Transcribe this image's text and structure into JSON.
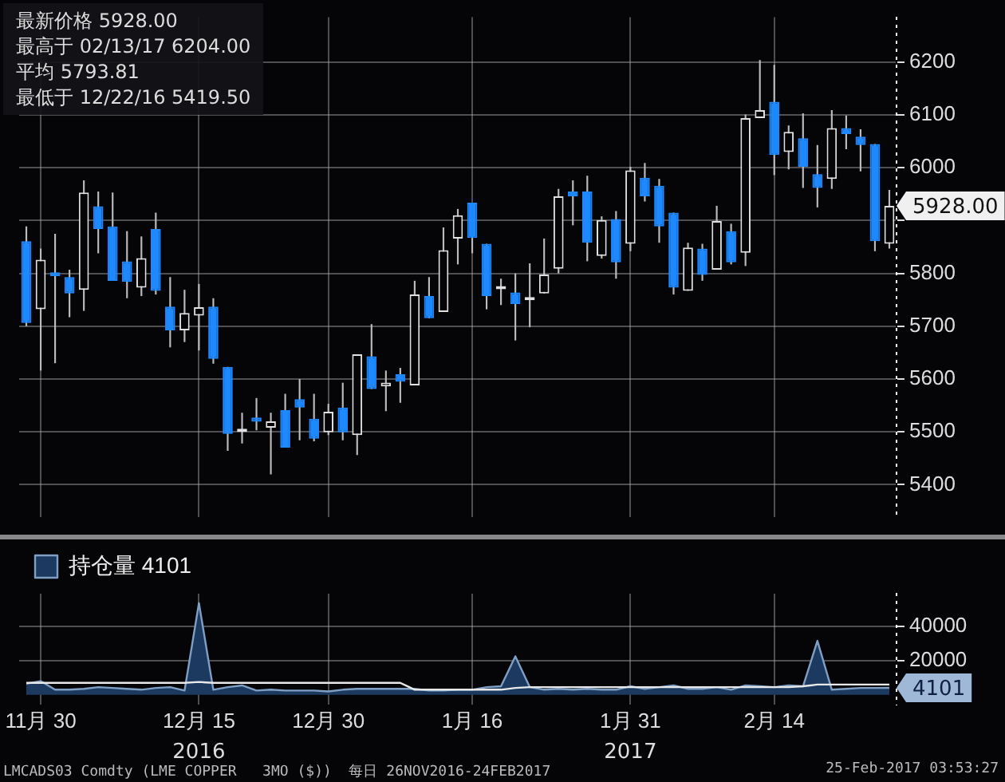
{
  "chart_data": [
    {
      "type": "candlestick",
      "categories": [
        null,
        null,
        null,
        null,
        null,
        null,
        null,
        null,
        null,
        null,
        null,
        null,
        null,
        null,
        null,
        null,
        null,
        null,
        null,
        null,
        null,
        null,
        null,
        null,
        null,
        null,
        null,
        null,
        null,
        null,
        null,
        null,
        null,
        null,
        null,
        null,
        null,
        null,
        null,
        null,
        null,
        null,
        null,
        null,
        null,
        null,
        null,
        null,
        null,
        null,
        null,
        null,
        null,
        null,
        null,
        null,
        null,
        null,
        null,
        null,
        null
      ],
      "ohlc": [
        [
          5861,
          5889,
          5700,
          5706
        ],
        [
          5732,
          5847,
          5616,
          5826
        ],
        [
          5802,
          5875,
          5630,
          5795
        ],
        [
          5793,
          5807,
          5717,
          5762
        ],
        [
          5769,
          5976,
          5729,
          5953
        ],
        [
          5927,
          5955,
          5838,
          5884
        ],
        [
          5889,
          5953,
          5786,
          5786
        ],
        [
          5823,
          5880,
          5753,
          5784
        ],
        [
          5773,
          5870,
          5757,
          5829
        ],
        [
          5884,
          5915,
          5760,
          5767
        ],
        [
          5737,
          5793,
          5660,
          5692
        ],
        [
          5692,
          5769,
          5670,
          5725
        ],
        [
          5720,
          5780,
          5654,
          5736
        ],
        [
          5737,
          5753,
          5629,
          5638
        ],
        [
          5623,
          5623,
          5464,
          5496
        ],
        [
          5500,
          5536,
          5478,
          5503
        ],
        [
          5527,
          5564,
          5503,
          5519
        ],
        [
          5508,
          5536,
          5419.5,
          5520
        ],
        [
          5541,
          5572,
          5470,
          5470
        ],
        [
          5562,
          5600,
          5484,
          5546
        ],
        [
          5525,
          5572,
          5482,
          5487
        ],
        [
          5499,
          5553,
          5494,
          5538
        ],
        [
          5546,
          5593,
          5484,
          5499
        ],
        [
          5494,
          5647,
          5456,
          5647
        ],
        [
          5643,
          5704,
          5581,
          5581
        ],
        [
          5586,
          5616,
          5539,
          5593
        ],
        [
          5609,
          5621,
          5555,
          5595
        ],
        [
          5588,
          5786,
          5588,
          5760
        ],
        [
          5757,
          5793,
          5715,
          5715
        ],
        [
          5727,
          5887,
          5727,
          5844
        ],
        [
          5866,
          5922,
          5817,
          5910
        ],
        [
          5934,
          5934,
          5838,
          5867
        ],
        [
          5856,
          5856,
          5732,
          5757
        ],
        [
          5770,
          5790,
          5740,
          5772
        ],
        [
          5764,
          5800,
          5673,
          5742
        ],
        [
          5749,
          5819,
          5698,
          5751
        ],
        [
          5762,
          5866,
          5762,
          5798
        ],
        [
          5809,
          5960,
          5800,
          5946
        ],
        [
          5955,
          5976,
          5891,
          5946
        ],
        [
          5955,
          5985,
          5823,
          5858
        ],
        [
          5833,
          5908,
          5828,
          5901
        ],
        [
          5903,
          5918,
          5790,
          5821
        ],
        [
          5856,
          6002,
          5842,
          5995
        ],
        [
          5981,
          6009,
          5936,
          5946
        ],
        [
          5966,
          5979,
          5858,
          5889
        ],
        [
          5915,
          5915,
          5760,
          5773
        ],
        [
          5767,
          5858,
          5767,
          5849
        ],
        [
          5847,
          5856,
          5786,
          5797
        ],
        [
          5807,
          5928,
          5807,
          5899
        ],
        [
          5880,
          5894,
          5817,
          5821
        ],
        [
          5839,
          6101,
          5814,
          6094
        ],
        [
          6094,
          6204,
          6094,
          6109
        ],
        [
          6125,
          6195,
          5986,
          6024
        ],
        [
          6030,
          6080,
          5997,
          6068
        ],
        [
          6056,
          6103,
          5962,
          6002
        ],
        [
          5988,
          6043,
          5925,
          5962
        ],
        [
          5979,
          6109,
          5960,
          6075
        ],
        [
          6075,
          6099,
          6035,
          6064
        ],
        [
          6059,
          6073,
          5993,
          6043
        ],
        [
          6045,
          6045,
          5842,
          5861
        ],
        [
          5856,
          5958,
          5847,
          5928
        ]
      ],
      "ylim": [
        5338,
        6285
      ],
      "yticks": [
        5400,
        5500,
        5600,
        5700,
        5800,
        {
          "value": 5900,
          "label": null
        },
        6000,
        6100,
        6200
      ],
      "grid": true,
      "tick_labels": "y",
      "annotations": [
        "最新价格 5928.00",
        "最高于 02/13/17 6204.00",
        "平均 5793.81",
        "最低于 12/22/16 5419.50",
        "5928.00"
      ]
    },
    {
      "type": "area",
      "categories": [
        null,
        "11月 30",
        null,
        null,
        null,
        null,
        null,
        null,
        null,
        null,
        null,
        null,
        "12月 15",
        null,
        null,
        null,
        null,
        null,
        null,
        null,
        null,
        "12月 30",
        null,
        null,
        null,
        null,
        null,
        null,
        null,
        null,
        null,
        "1月 16",
        null,
        null,
        null,
        null,
        null,
        null,
        null,
        null,
        null,
        null,
        "1月 31",
        null,
        null,
        null,
        null,
        null,
        null,
        null,
        null,
        null,
        "2月 14",
        null,
        null,
        null,
        null,
        null,
        null,
        null,
        null
      ],
      "series": [
        {
          "name": "持仓量 4101",
          "color": "#1c3a60",
          "values": [
            6500,
            8000,
            3000,
            3000,
            3500,
            4500,
            4000,
            3500,
            3000,
            4000,
            4500,
            2500,
            53500,
            3000,
            4500,
            5500,
            2500,
            3000,
            2500,
            2500,
            2500,
            2000,
            3000,
            3500,
            3500,
            3500,
            3500,
            3500,
            2500,
            2500,
            3000,
            3000,
            4500,
            5000,
            22500,
            4500,
            3000,
            3500,
            3000,
            3500,
            3000,
            3000,
            5000,
            3500,
            4500,
            5500,
            3500,
            3500,
            4500,
            3000,
            5500,
            5000,
            4500,
            5500,
            5000,
            31500,
            3000,
            3500,
            4000,
            4000,
            4101
          ]
        },
        {
          "type": "line",
          "color": "#e8e8e8",
          "values": [
            7000,
            7000,
            7000,
            7000,
            7000,
            7000,
            7000,
            7000,
            7000,
            7000,
            7000,
            7000,
            7500,
            7000,
            7000,
            7000,
            7000,
            7000,
            7000,
            7000,
            7000,
            7000,
            7000,
            7000,
            7000,
            7000,
            7000,
            3000,
            3000,
            3000,
            3000,
            3000,
            3000,
            3000,
            4000,
            4500,
            4500,
            4500,
            4500,
            4500,
            4500,
            4500,
            4500,
            4500,
            4500,
            4500,
            4500,
            4500,
            4500,
            4500,
            4500,
            4500,
            4500,
            4500,
            5000,
            6000,
            6000,
            6000,
            6000,
            6000,
            6000
          ]
        }
      ],
      "ylim": [
        -5600,
        59000
      ],
      "yticks": [
        20000,
        40000
      ],
      "grid": true,
      "legend": "top left",
      "annotations": [
        "4101",
        "2016",
        "2017",
        "LMCADS03 Comdty (LME COPPER   3MO ($))  每日 26NOV2016-24FEB2017",
        "25-Feb-2017 03:53:27"
      ]
    }
  ]
}
